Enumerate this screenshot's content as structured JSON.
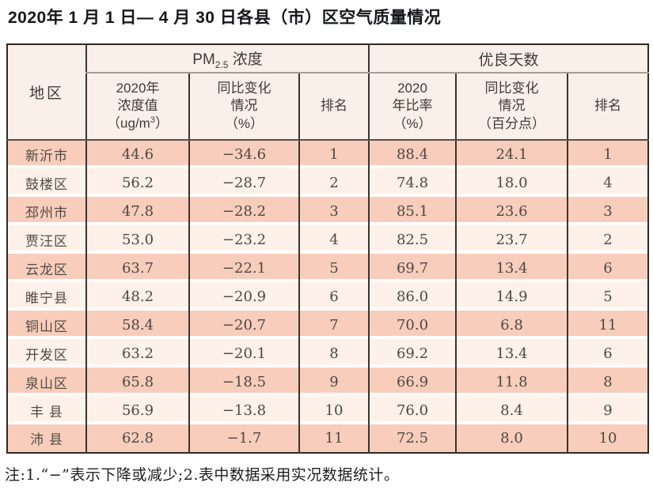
{
  "title": "2020年 1 月 1 日— 4 月 30 日各县（市）区空气质量情况",
  "table": {
    "header": {
      "region": "地区",
      "pm_group": {
        "prefix": "PM",
        "sub": "2.5",
        "suffix": " 浓度"
      },
      "good_group": "优良天数",
      "pm_value": {
        "line1": "2020年",
        "line2": "浓度值",
        "line3_pre": "（ug/m",
        "line3_sup": "3",
        "line3_post": "）"
      },
      "pm_change": {
        "line1": "同比变化",
        "line2": "情况",
        "line3": "（%）"
      },
      "pm_rank": "排名",
      "good_ratio": {
        "line1": "2020",
        "line2": "年比率",
        "line3": "（%）"
      },
      "good_change": {
        "line1": "同比变化",
        "line2": "情况",
        "line3": "（百分点）"
      },
      "good_rank": "排名"
    },
    "rows": [
      {
        "region": "新沂市",
        "pm_value": "44.6",
        "pm_change": "−34.6",
        "pm_rank": "1",
        "good_ratio": "88.4",
        "good_change": "24.1",
        "good_rank": "1"
      },
      {
        "region": "鼓楼区",
        "pm_value": "56.2",
        "pm_change": "−28.7",
        "pm_rank": "2",
        "good_ratio": "74.8",
        "good_change": "18.0",
        "good_rank": "4"
      },
      {
        "region": "邳州市",
        "pm_value": "47.8",
        "pm_change": "−28.2",
        "pm_rank": "3",
        "good_ratio": "85.1",
        "good_change": "23.6",
        "good_rank": "3"
      },
      {
        "region": "贾汪区",
        "pm_value": "53.0",
        "pm_change": "−23.2",
        "pm_rank": "4",
        "good_ratio": "82.5",
        "good_change": "23.7",
        "good_rank": "2"
      },
      {
        "region": "云龙区",
        "pm_value": "63.7",
        "pm_change": "−22.1",
        "pm_rank": "5",
        "good_ratio": "69.7",
        "good_change": "13.4",
        "good_rank": "6"
      },
      {
        "region": "睢宁县",
        "pm_value": "48.2",
        "pm_change": "−20.9",
        "pm_rank": "6",
        "good_ratio": "86.0",
        "good_change": "14.9",
        "good_rank": "5"
      },
      {
        "region": "铜山区",
        "pm_value": "58.4",
        "pm_change": "−20.7",
        "pm_rank": "7",
        "good_ratio": "70.0",
        "good_change": "6.8",
        "good_rank": "11"
      },
      {
        "region": "开发区",
        "pm_value": "63.2",
        "pm_change": "−20.1",
        "pm_rank": "8",
        "good_ratio": "69.2",
        "good_change": "13.4",
        "good_rank": "6"
      },
      {
        "region": "泉山区",
        "pm_value": "65.8",
        "pm_change": "−18.5",
        "pm_rank": "9",
        "good_ratio": "66.9",
        "good_change": "11.8",
        "good_rank": "8"
      },
      {
        "region": "丰 县",
        "pm_value": "56.9",
        "pm_change": "−13.8",
        "pm_rank": "10",
        "good_ratio": "76.0",
        "good_change": "8.4",
        "good_rank": "9"
      },
      {
        "region": "沛 县",
        "pm_value": "62.8",
        "pm_change": "−1.7",
        "pm_rank": "11",
        "good_ratio": "72.5",
        "good_change": "8.0",
        "good_rank": "10"
      }
    ]
  },
  "footnote": "注:1.“−”表示下降或减少;2.表中数据采用实况数据统计。",
  "colors": {
    "row_peach": "#f8cdbc",
    "row_cream": "#fdf1e9",
    "header_bg": "#fbf0e9",
    "border_dark": "#3a342e",
    "border_gray": "#a59d96"
  }
}
